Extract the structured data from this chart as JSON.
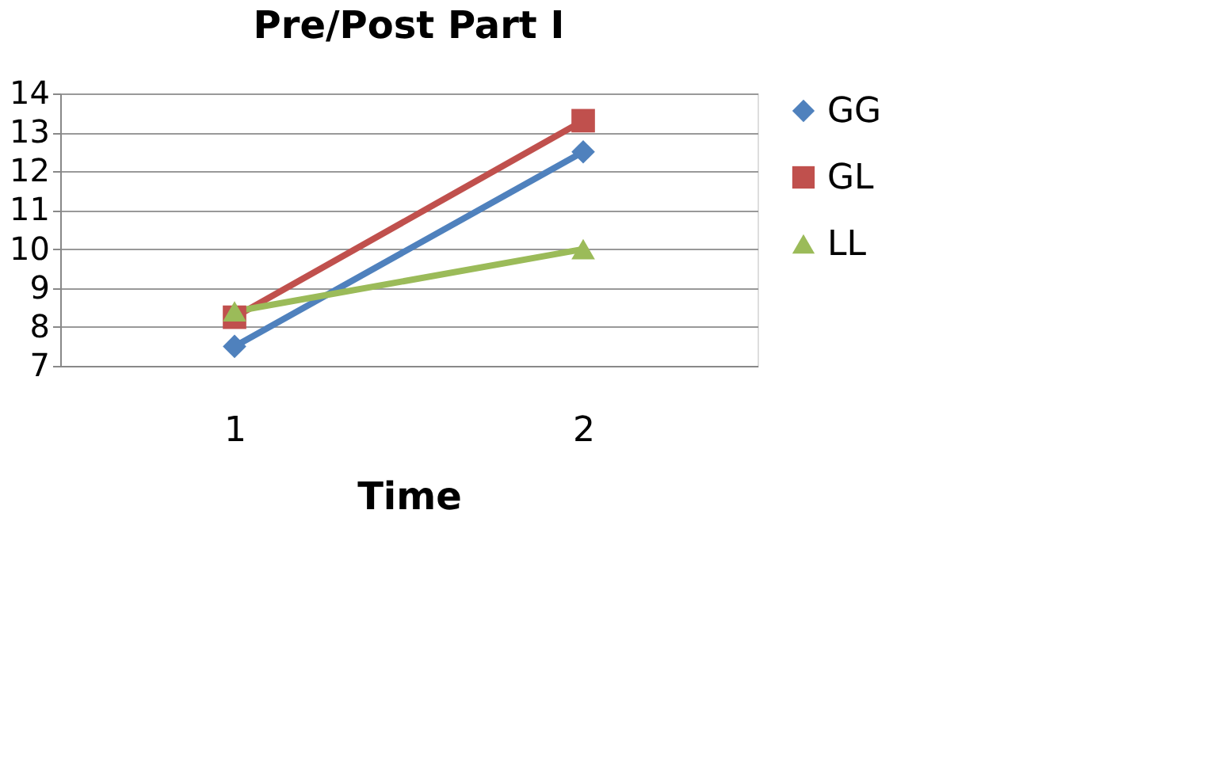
{
  "chart_data": {
    "type": "line",
    "title": "Pre/Post Part I",
    "xlabel": "Time",
    "categories": [
      "1",
      "2"
    ],
    "series": [
      {
        "name": "GG",
        "color": "#4f81bd",
        "marker": "diamond",
        "values": [
          7.5,
          12.5
        ]
      },
      {
        "name": "GL",
        "color": "#c0504d",
        "marker": "square",
        "values": [
          8.25,
          13.3
        ]
      },
      {
        "name": "LL",
        "color": "#9bbb59",
        "marker": "triangle",
        "values": [
          8.4,
          10.0
        ]
      }
    ],
    "ylim": [
      7,
      14
    ],
    "yticks": [
      7,
      8,
      9,
      10,
      11,
      12,
      13,
      14
    ],
    "grid": "y",
    "legend": "right",
    "line_style": "solid"
  }
}
